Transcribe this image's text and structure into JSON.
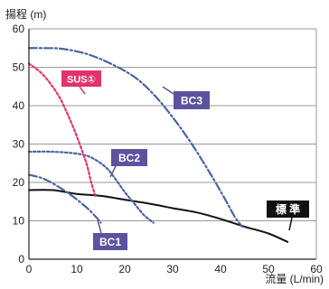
{
  "chart_data": {
    "type": "line",
    "ylabel": "揚程 (m)",
    "xlabel": "流量 (L/min)",
    "xlim": [
      0,
      60
    ],
    "ylim": [
      0,
      60
    ],
    "x_ticks": [
      0,
      10,
      20,
      30,
      40,
      50,
      60
    ],
    "y_ticks": [
      0,
      10,
      20,
      30,
      40,
      50,
      60
    ],
    "grid": "horizontal",
    "series": [
      {
        "name": "標 準",
        "color": "#111111",
        "line_style": "solid",
        "points": [
          [
            0,
            18
          ],
          [
            5,
            18
          ],
          [
            10,
            17
          ],
          [
            15,
            16.5
          ],
          [
            20,
            15.5
          ],
          [
            25,
            14.5
          ],
          [
            30,
            13.3
          ],
          [
            35,
            12.2
          ],
          [
            40,
            10.5
          ],
          [
            45,
            8.5
          ],
          [
            50,
            6.7
          ],
          [
            54,
            4.5
          ]
        ]
      },
      {
        "name": "BC1",
        "color": "#4a63a0",
        "line_style": "dash-dot",
        "points": [
          [
            0,
            22
          ],
          [
            3,
            21
          ],
          [
            6,
            19
          ],
          [
            9,
            16.5
          ],
          [
            12,
            13.5
          ],
          [
            14,
            11
          ],
          [
            15,
            9.5
          ]
        ]
      },
      {
        "name": "BC2",
        "color": "#4a63a0",
        "line_style": "dotted",
        "points": [
          [
            0,
            28
          ],
          [
            5,
            28
          ],
          [
            10,
            27.5
          ],
          [
            13,
            26.5
          ],
          [
            16,
            24
          ],
          [
            18,
            21
          ],
          [
            20,
            17.5
          ],
          [
            22,
            14.5
          ],
          [
            24,
            11.5
          ],
          [
            26,
            9.5
          ]
        ]
      },
      {
        "name": "BC3",
        "color": "#4a63a0",
        "line_style": "dash-dot",
        "points": [
          [
            0,
            55
          ],
          [
            3,
            55
          ],
          [
            7,
            54.8
          ],
          [
            12,
            53.5
          ],
          [
            17,
            51
          ],
          [
            22,
            47.5
          ],
          [
            26,
            43
          ],
          [
            30,
            37
          ],
          [
            34,
            30
          ],
          [
            38,
            22
          ],
          [
            41,
            15.5
          ],
          [
            43,
            11
          ],
          [
            44.5,
            8.5
          ]
        ]
      },
      {
        "name": "SUS①",
        "color": "#e3336f",
        "line_style": "dotted",
        "points": [
          [
            0,
            51
          ],
          [
            3,
            48
          ],
          [
            6,
            43
          ],
          [
            8,
            38
          ],
          [
            10,
            32
          ],
          [
            12,
            25
          ],
          [
            13,
            20
          ],
          [
            14,
            16
          ]
        ]
      }
    ]
  }
}
